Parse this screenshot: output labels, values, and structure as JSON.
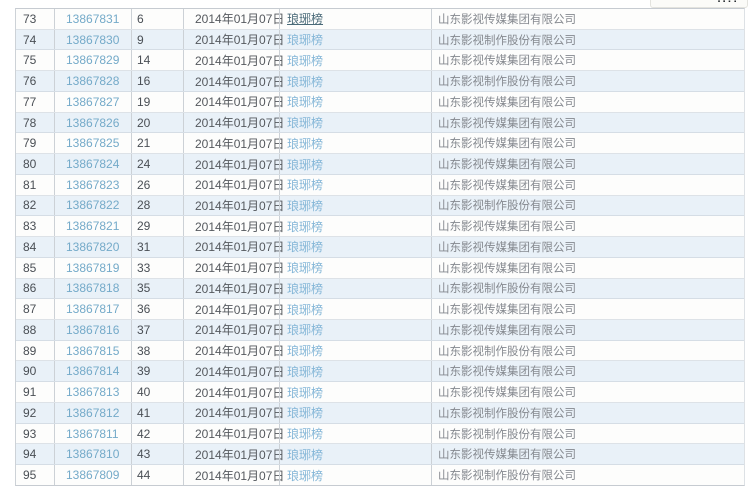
{
  "colors": {
    "link_blue": "#74aac9",
    "title_link_blue": "#84b6d7",
    "title_link_visited": "#4a6a78",
    "stripe_blue": "#e9f1f8",
    "row_white": "#fdfdfc",
    "border_gray": "#ccd1d6",
    "text_dark": "#4c5156",
    "text_gray": "#85898f"
  },
  "table": {
    "date_shared": "2014年01月07日",
    "title_shared": "琅琊榜",
    "company_a": "山东影视传媒集团有限公司",
    "company_b": "山东影视制作股份有限公司",
    "rows": [
      {
        "seq": "73",
        "id": "13867831",
        "count": "6",
        "date": "2014年01月07日",
        "title": "琅琊榜",
        "title_visited": true,
        "company": "山东影视传媒集团有限公司"
      },
      {
        "seq": "74",
        "id": "13867830",
        "count": "9",
        "date": "2014年01月07日",
        "title": "琅琊榜",
        "company": "山东影视制作股份有限公司"
      },
      {
        "seq": "75",
        "id": "13867829",
        "count": "14",
        "date": "2014年01月07日",
        "title": "琅琊榜",
        "company": "山东影视传媒集团有限公司"
      },
      {
        "seq": "76",
        "id": "13867828",
        "count": "16",
        "date": "2014年01月07日",
        "title": "琅琊榜",
        "company": "山东影视制作股份有限公司"
      },
      {
        "seq": "77",
        "id": "13867827",
        "count": "19",
        "date": "2014年01月07日",
        "title": "琅琊榜",
        "company": "山东影视传媒集团有限公司"
      },
      {
        "seq": "78",
        "id": "13867826",
        "count": "20",
        "date": "2014年01月07日",
        "title": "琅琊榜",
        "company": "山东影视传媒集团有限公司"
      },
      {
        "seq": "79",
        "id": "13867825",
        "count": "21",
        "date": "2014年01月07日",
        "title": "琅琊榜",
        "company": "山东影视传媒集团有限公司"
      },
      {
        "seq": "80",
        "id": "13867824",
        "count": "24",
        "date": "2014年01月07日",
        "title": "琅琊榜",
        "company": "山东影视传媒集团有限公司"
      },
      {
        "seq": "81",
        "id": "13867823",
        "count": "26",
        "date": "2014年01月07日",
        "title": "琅琊榜",
        "company": "山东影视传媒集团有限公司"
      },
      {
        "seq": "82",
        "id": "13867822",
        "count": "28",
        "date": "2014年01月07日",
        "title": "琅琊榜",
        "company": "山东影视制作股份有限公司"
      },
      {
        "seq": "83",
        "id": "13867821",
        "count": "29",
        "date": "2014年01月07日",
        "title": "琅琊榜",
        "company": "山东影视传媒集团有限公司"
      },
      {
        "seq": "84",
        "id": "13867820",
        "count": "31",
        "date": "2014年01月07日",
        "title": "琅琊榜",
        "company": "山东影视传媒集团有限公司"
      },
      {
        "seq": "85",
        "id": "13867819",
        "count": "33",
        "date": "2014年01月07日",
        "title": "琅琊榜",
        "company": "山东影视传媒集团有限公司"
      },
      {
        "seq": "86",
        "id": "13867818",
        "count": "35",
        "date": "2014年01月07日",
        "title": "琅琊榜",
        "company": "山东影视制作股份有限公司"
      },
      {
        "seq": "87",
        "id": "13867817",
        "count": "36",
        "date": "2014年01月07日",
        "title": "琅琊榜",
        "company": "山东影视传媒集团有限公司"
      },
      {
        "seq": "88",
        "id": "13867816",
        "count": "37",
        "date": "2014年01月07日",
        "title": "琅琊榜",
        "company": "山东影视传媒集团有限公司"
      },
      {
        "seq": "89",
        "id": "13867815",
        "count": "38",
        "date": "2014年01月07日",
        "title": "琅琊榜",
        "company": "山东影视制作股份有限公司"
      },
      {
        "seq": "90",
        "id": "13867814",
        "count": "39",
        "date": "2014年01月07日",
        "title": "琅琊榜",
        "company": "山东影视传媒集团有限公司"
      },
      {
        "seq": "91",
        "id": "13867813",
        "count": "40",
        "date": "2014年01月07日",
        "title": "琅琊榜",
        "company": "山东影视传媒集团有限公司"
      },
      {
        "seq": "92",
        "id": "13867812",
        "count": "41",
        "date": "2014年01月07日",
        "title": "琅琊榜",
        "company": "山东影视制作股份有限公司"
      },
      {
        "seq": "93",
        "id": "13867811",
        "count": "42",
        "date": "2014年01月07日",
        "title": "琅琊榜",
        "company": "山东影视制作股份有限公司"
      },
      {
        "seq": "94",
        "id": "13867810",
        "count": "43",
        "date": "2014年01月07日",
        "title": "琅琊榜",
        "company": "山东影视传媒集团有限公司"
      },
      {
        "seq": "95",
        "id": "13867809",
        "count": "44",
        "date": "2014年01月07日",
        "title": "琅琊榜",
        "company": "山东影视制作股份有限公司"
      }
    ]
  }
}
